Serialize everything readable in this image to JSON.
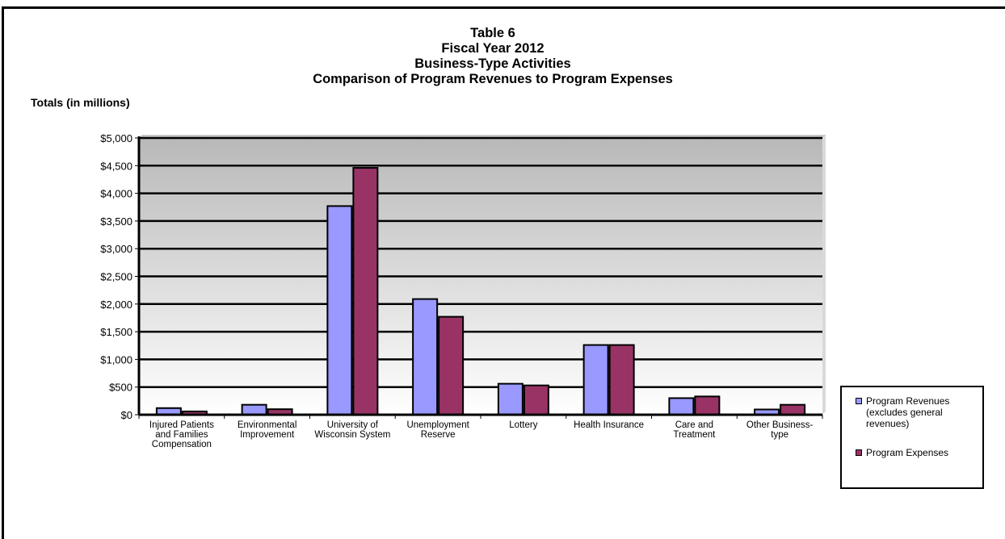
{
  "title_lines": [
    "Table 6",
    "Fiscal Year 2012",
    "Business-Type Activities",
    "Comparison of Program Revenues to Program Expenses"
  ],
  "colors": {
    "revenues": "#9999ff",
    "expenses": "#993366",
    "plot_top": "#b8b8b8",
    "plot_bottom": "#ffffff"
  },
  "chart_data": {
    "type": "bar",
    "title": "Table 6 Fiscal Year 2012 Business-Type Activities Comparison of Program Revenues to Program Expenses",
    "ylabel": "Totals (in millions)",
    "xlabel": "",
    "ylim": [
      0,
      5000
    ],
    "yticks": [
      0,
      500,
      1000,
      1500,
      2000,
      2500,
      3000,
      3500,
      4000,
      4500,
      5000
    ],
    "ytick_labels": [
      "$0",
      "$500",
      "$1,000",
      "$1,500",
      "$2,000",
      "$2,500",
      "$3,000",
      "$3,500",
      "$4,000",
      "$4,500",
      "$5,000"
    ],
    "grid": true,
    "legend_position": "bottom-right",
    "categories": [
      [
        "Injured Patients",
        "and Families",
        "Compensation"
      ],
      [
        "Environmental",
        "Improvement"
      ],
      [
        "University of",
        "Wisconsin System"
      ],
      [
        "Unemployment",
        "Reserve"
      ],
      [
        "Lottery"
      ],
      [
        "Health Insurance"
      ],
      [
        "Care and",
        "Treatment"
      ],
      [
        "Other Business-",
        "type"
      ]
    ],
    "series": [
      {
        "name": "Program Revenues (excludes general revenues)",
        "legend_lines": [
          "Program Revenues",
          "(excludes general",
          "revenues)"
        ],
        "values": [
          120,
          180,
          3770,
          2090,
          560,
          1260,
          300,
          95
        ]
      },
      {
        "name": "Program Expenses",
        "legend_lines": [
          "Program Expenses"
        ],
        "values": [
          60,
          100,
          4460,
          1770,
          530,
          1260,
          330,
          180
        ]
      }
    ]
  }
}
